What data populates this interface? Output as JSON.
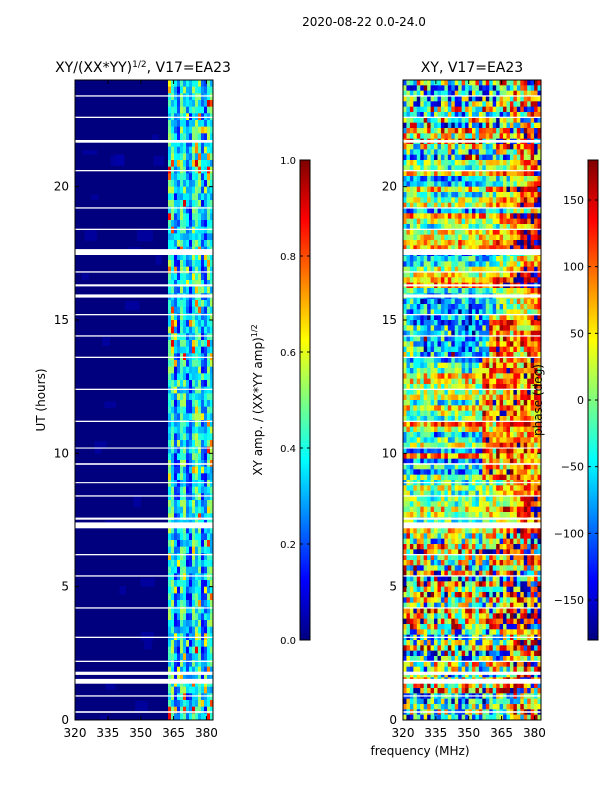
{
  "suptitle": "2020-08-22 0.0-24.0",
  "xlabel_common": "frequency (MHz)",
  "colormap": {
    "stops": [
      "#00007f",
      "#0000ff",
      "#007fff",
      "#00ffff",
      "#7fff7f",
      "#ffff00",
      "#ff7f00",
      "#ff0000",
      "#7f0000"
    ]
  },
  "chart_data": [
    {
      "type": "heatmap",
      "title": "XY/(XX*YY)^(1/2), V17=EA23",
      "title_main": "XY/(XX*YY)",
      "title_sup": "1/2",
      "title_tail": ", V17=EA23",
      "xlabel": "frequency (MHz)",
      "ylabel": "UT (hours)",
      "xlim": [
        320,
        383
      ],
      "ylim": [
        0,
        24
      ],
      "xticks": [
        320,
        335,
        350,
        365,
        380
      ],
      "yticks": [
        0,
        5,
        10,
        15,
        20
      ],
      "colorbar": {
        "label_main": "XY amp. / (XX*YY amp)",
        "label_sup": "1/2",
        "range": [
          0.0,
          1.0
        ],
        "ticks": [
          "0.0",
          "0.2",
          "0.4",
          "0.6",
          "0.8",
          "1.0"
        ]
      },
      "description": "Normalized XY amplitude; low (~0.05) across 320-361 MHz, elevated 0.3-0.8 in bands near 363-382 MHz; flagged (blank) time rows at ~1.5, 7.4, 16.0, 17.6, 21.8 UT and many thin gaps."
    },
    {
      "type": "heatmap",
      "title": "XY, V17=EA23",
      "xlabel": "frequency (MHz)",
      "ylabel": "",
      "xlim": [
        320,
        383
      ],
      "ylim": [
        0,
        24
      ],
      "xticks": [
        320,
        335,
        350,
        365,
        380
      ],
      "yticks": [
        0,
        5,
        10,
        15,
        20
      ],
      "colorbar": {
        "label": "phase (deg)",
        "range": [
          -180,
          180
        ],
        "ticks": [
          "−150",
          "−100",
          "−50",
          "0",
          "50",
          "100",
          "150"
        ]
      },
      "description": "XY phase in degrees; noisy, spanning -180 to 180 deg with structured bands over time."
    }
  ]
}
